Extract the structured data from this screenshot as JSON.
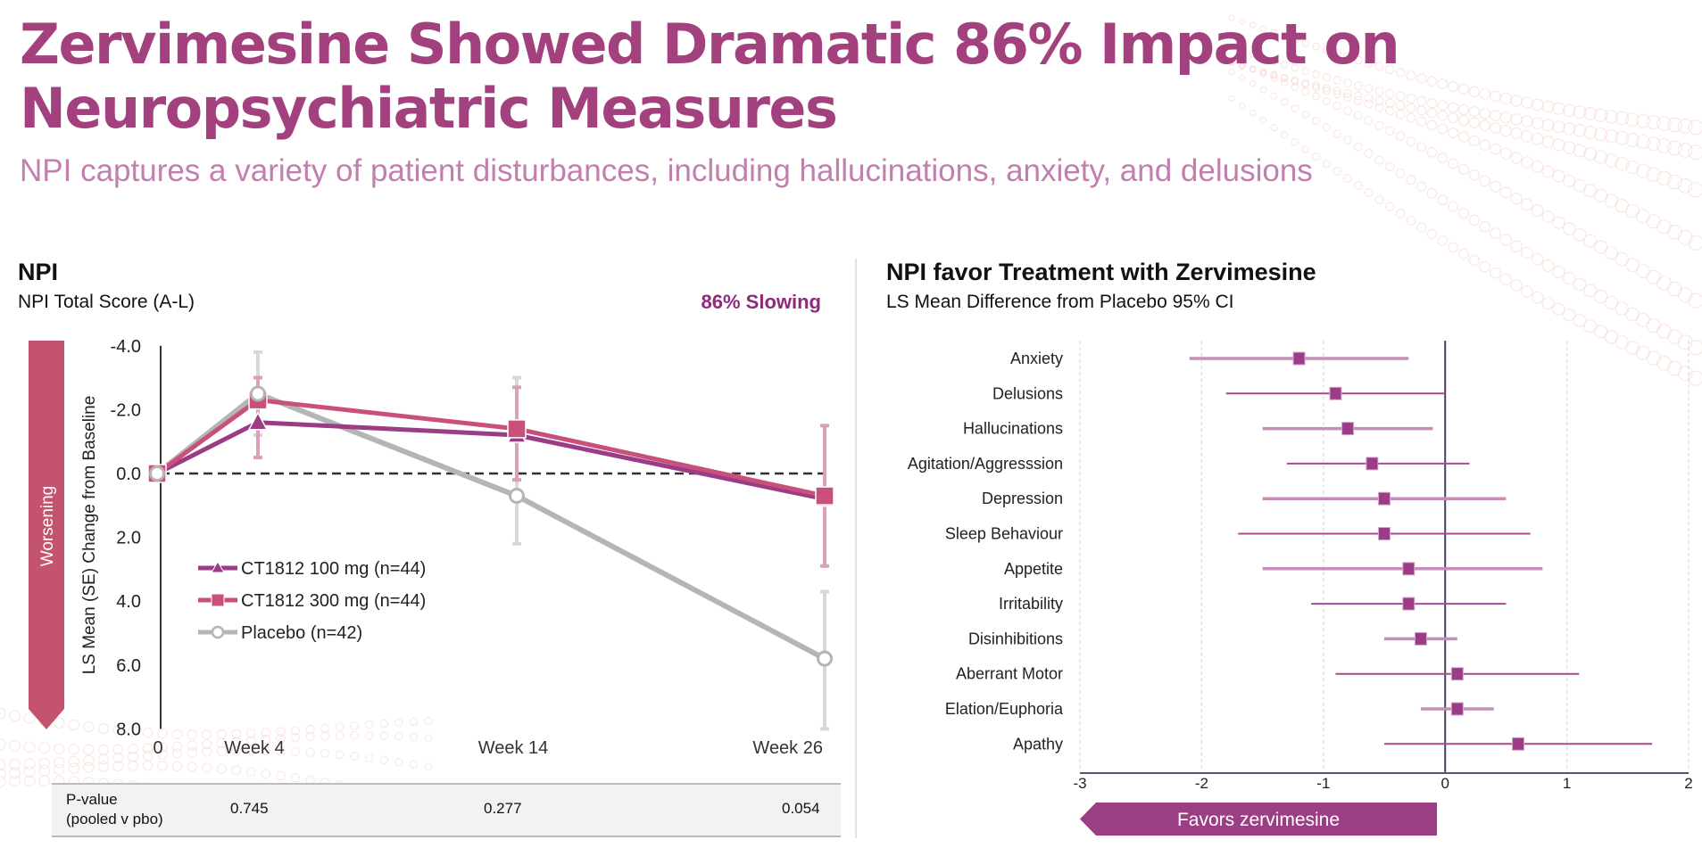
{
  "header": {
    "title_line1": "Zervimesine Showed Dramatic 86% Impact on",
    "title_line2": "Neuropsychiatric Measures",
    "subtitle": "NPI captures a variety of patient disturbances, including hallucinations, anxiety, and delusions"
  },
  "colors": {
    "title": "#a3417f",
    "subtitle": "#c17fae",
    "dose100": "#9b3c86",
    "dose300": "#c9507a",
    "placebo": "#b5b5b5",
    "worsening_arrow": "#c4536f",
    "forest_marker": "#9b3c86",
    "forest_ci": "#c58db7",
    "favors_arrow": "#9b3f84"
  },
  "left_panel": {
    "title": "NPI",
    "subtitle": "NPI Total Score (A-L)",
    "callout": "86% Slowing",
    "worsening_label": "Worsening",
    "pvalue_label_line1": "P-value",
    "pvalue_label_line2": "(pooled v pbo)",
    "pvalues": [
      "0.745",
      "0.277",
      "0.054"
    ]
  },
  "right_panel": {
    "title": "NPI favor Treatment with Zervimesine",
    "subtitle": "LS Mean Difference from Placebo 95% CI",
    "favors_label": "Favors zervimesine"
  },
  "chart_data": [
    {
      "type": "line",
      "title": "NPI Total Score (A-L)",
      "xlabel": "",
      "ylabel": "LS Mean (SE) Change from Baseline",
      "categories": [
        "0",
        "Week 4",
        "Week 14",
        "Week 26"
      ],
      "x_weeks": [
        0,
        4,
        14,
        26
      ],
      "ylim": [
        -4.0,
        8.0
      ],
      "y_inverted": true,
      "yticks": [
        "-4.0",
        "-2.0",
        "0.0",
        "2.0",
        "4.0",
        "6.0",
        "8.0"
      ],
      "ytick_values": [
        -4,
        -2,
        0,
        2,
        4,
        6,
        8
      ],
      "reference_line": 0,
      "legend_position": "center-left",
      "series": [
        {
          "name": "CT1812 100 mg (n=44)",
          "marker": "triangle",
          "values": [
            0,
            -1.6,
            -1.2,
            0.8
          ],
          "err_low": [
            null,
            null,
            null,
            null
          ],
          "err_high": [
            null,
            null,
            null,
            null
          ]
        },
        {
          "name": "CT1812 300 mg (n=44)",
          "marker": "square",
          "values": [
            0,
            -2.3,
            -1.4,
            0.7
          ],
          "err_low": [
            null,
            -0.5,
            0.2,
            2.9
          ],
          "err_high": [
            null,
            -3.0,
            -2.7,
            -1.5
          ]
        },
        {
          "name": "Placebo (n=42)",
          "marker": "circle-open",
          "values": [
            0,
            -2.5,
            0.7,
            5.8
          ],
          "err_low": [
            null,
            -1.2,
            2.2,
            8.0
          ],
          "err_high": [
            null,
            -3.8,
            -3.0,
            3.7
          ]
        }
      ]
    },
    {
      "type": "forest",
      "title": "NPI favor Treatment with Zervimesine",
      "subtitle": "LS Mean Difference from Placebo 95% CI",
      "xlim": [
        -3,
        2
      ],
      "xticks": [
        "-3",
        "-2",
        "-1",
        "0",
        "1",
        "2"
      ],
      "xtick_values": [
        -3,
        -2,
        -1,
        0,
        1,
        2
      ],
      "grid": true,
      "annotation": "Favors zervimesine",
      "rows": [
        {
          "label": "Anxiety",
          "estimate": -1.2,
          "ci_low": -2.1,
          "ci_high": -0.3
        },
        {
          "label": "Delusions",
          "estimate": -0.9,
          "ci_low": -1.8,
          "ci_high": 0.0
        },
        {
          "label": "Hallucinations",
          "estimate": -0.8,
          "ci_low": -1.5,
          "ci_high": -0.1
        },
        {
          "label": "Agitation/Aggresssion",
          "estimate": -0.6,
          "ci_low": -1.3,
          "ci_high": 0.2
        },
        {
          "label": "Depression",
          "estimate": -0.5,
          "ci_low": -1.5,
          "ci_high": 0.5
        },
        {
          "label": "Sleep Behaviour",
          "estimate": -0.5,
          "ci_low": -1.7,
          "ci_high": 0.7
        },
        {
          "label": "Appetite",
          "estimate": -0.3,
          "ci_low": -1.5,
          "ci_high": 0.8
        },
        {
          "label": "Irritability",
          "estimate": -0.3,
          "ci_low": -1.1,
          "ci_high": 0.5
        },
        {
          "label": "Disinhibitions",
          "estimate": -0.2,
          "ci_low": -0.5,
          "ci_high": 0.1
        },
        {
          "label": "Aberrant Motor",
          "estimate": 0.1,
          "ci_low": -0.9,
          "ci_high": 1.1
        },
        {
          "label": "Elation/Euphoria",
          "estimate": 0.1,
          "ci_low": -0.2,
          "ci_high": 0.4
        },
        {
          "label": "Apathy",
          "estimate": 0.6,
          "ci_low": -0.5,
          "ci_high": 1.7
        }
      ]
    }
  ]
}
